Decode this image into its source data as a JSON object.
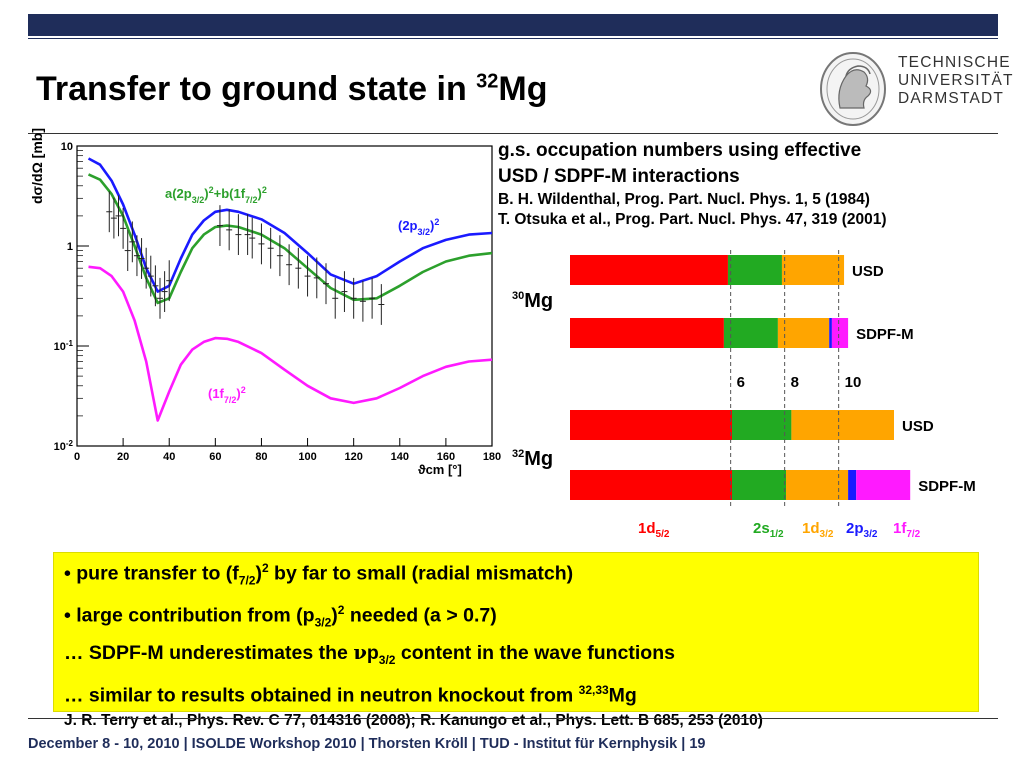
{
  "slide": {
    "title_main": "Transfer to ground state in ",
    "title_sup": "32",
    "title_elem": "Mg"
  },
  "logo": {
    "line1": "TECHNISCHE",
    "line2": "UNIVERSITÄT",
    "line3": "DARMSTADT"
  },
  "info": {
    "line1": "g.s. occupation numbers using effective",
    "line2": "USD / SDPF-M interactions",
    "ref1": "B. H. Wildenthal, Prog. Part. Nucl. Phys. 1, 5 (1984)",
    "ref2": "T. Otsuka et al., Prog. Part. Nucl. Phys. 47, 319 (2001)"
  },
  "chart_data": [
    {
      "type": "line",
      "ylabel": "dσ/dΩ [mb]",
      "xlabel": "ϑcm [°]",
      "xlim": [
        0,
        180
      ],
      "ylim": [
        0.01,
        10
      ],
      "yscale": "log",
      "x_ticks": [
        "0",
        "20",
        "40",
        "60",
        "80",
        "100",
        "120",
        "140",
        "160",
        "180"
      ],
      "y_ticks": [
        "10",
        "1",
        "10-1",
        "10-2"
      ],
      "series": [
        {
          "name": "(2p3/2)2",
          "color": "#1a1aff",
          "x": [
            5,
            10,
            15,
            20,
            25,
            30,
            35,
            40,
            45,
            50,
            55,
            60,
            65,
            70,
            80,
            90,
            100,
            110,
            120,
            130,
            140,
            150,
            160,
            170,
            180
          ],
          "y": [
            7.5,
            6.5,
            4.5,
            2.6,
            1.3,
            0.6,
            0.35,
            0.4,
            0.75,
            1.3,
            1.8,
            2.2,
            2.3,
            2.2,
            1.85,
            1.35,
            0.85,
            0.52,
            0.42,
            0.5,
            0.7,
            0.95,
            1.15,
            1.3,
            1.35
          ]
        },
        {
          "name": "a(2p3/2)2+b(1f7/2)2",
          "color": "#2ca02c",
          "x": [
            5,
            10,
            15,
            20,
            25,
            30,
            35,
            40,
            45,
            50,
            55,
            60,
            65,
            70,
            80,
            90,
            100,
            110,
            120,
            130,
            140,
            150,
            160,
            170,
            180
          ],
          "y": [
            5.2,
            4.6,
            3.3,
            2.0,
            1.0,
            0.48,
            0.27,
            0.3,
            0.55,
            0.95,
            1.3,
            1.55,
            1.6,
            1.55,
            1.3,
            0.95,
            0.6,
            0.38,
            0.29,
            0.3,
            0.4,
            0.55,
            0.7,
            0.8,
            0.85
          ]
        },
        {
          "name": "(1f7/2)2",
          "color": "#ff1aff",
          "x": [
            5,
            10,
            15,
            20,
            25,
            30,
            35,
            40,
            45,
            50,
            55,
            60,
            65,
            70,
            80,
            90,
            100,
            110,
            120,
            130,
            140,
            150,
            160,
            170,
            180
          ],
          "y": [
            0.62,
            0.6,
            0.5,
            0.35,
            0.18,
            0.07,
            0.018,
            0.035,
            0.065,
            0.092,
            0.11,
            0.12,
            0.118,
            0.11,
            0.085,
            0.058,
            0.04,
            0.03,
            0.027,
            0.03,
            0.038,
            0.05,
            0.062,
            0.07,
            0.073
          ]
        },
        {
          "name": "data",
          "color": "#000000",
          "x": [
            14,
            16,
            18,
            20,
            22,
            24,
            26,
            28,
            30,
            32,
            34,
            36,
            38,
            40,
            62,
            66,
            70,
            74,
            76,
            80,
            84,
            88,
            92,
            96,
            100,
            104,
            108,
            112,
            116,
            120,
            124,
            128,
            132
          ],
          "y": [
            2.2,
            1.9,
            2.0,
            1.5,
            0.9,
            1.1,
            0.8,
            0.75,
            0.6,
            0.5,
            0.4,
            0.3,
            0.35,
            0.45,
            1.6,
            1.45,
            1.3,
            1.3,
            1.2,
            1.05,
            0.95,
            0.8,
            0.65,
            0.6,
            0.5,
            0.48,
            0.42,
            0.3,
            0.35,
            0.3,
            0.28,
            0.3,
            0.26
          ]
        }
      ],
      "annotations": [
        "a(2p3/2)2+b(1f7/2)2",
        "(2p3/2)2",
        "(1f7/2)2"
      ]
    },
    {
      "type": "bar",
      "orientation": "horizontal-stacked",
      "x_ticks": [
        "6",
        "8",
        "10"
      ],
      "xlim": [
        0,
        14
      ],
      "legend": [
        "1d5/2",
        "2s1/2",
        "1d3/2",
        "2p3/2",
        "1f7/2"
      ],
      "colors": {
        "1d5/2": "#ff0000",
        "2s1/2": "#22aa22",
        "1d3/2": "#ffa500",
        "2p3/2": "#1a1aff",
        "1f7/2": "#ff1aff"
      },
      "groups": [
        {
          "nucleus_mass": "30",
          "nucleus_elem": "Mg",
          "rows": [
            {
              "label": "USD",
              "values": [
                5.85,
                2.0,
                2.3,
                0.0,
                0.0
              ]
            },
            {
              "label": "SDPF-M",
              "values": [
                5.7,
                2.0,
                1.9,
                0.1,
                0.6
              ]
            }
          ]
        },
        {
          "nucleus_mass": "32",
          "nucleus_elem": "Mg",
          "rows": [
            {
              "label": "USD",
              "values": [
                6.0,
                2.2,
                3.8,
                0.0,
                0.0
              ]
            },
            {
              "label": "SDPF-M",
              "values": [
                6.0,
                2.0,
                2.3,
                0.3,
                2.0
              ]
            }
          ]
        }
      ]
    }
  ],
  "summary": {
    "b1_pre": "• pure transfer to (f",
    "b1_sub": "7/2",
    "b1_mid": ")",
    "b1_sup": "2",
    "b1_post": " by far to small (radial mismatch)",
    "b2_pre": "• large contribution from (p",
    "b2_sub": "3/2",
    "b2_mid": ")",
    "b2_sup": "2",
    "b2_post": " needed (a > 0.7)",
    "b3_pre": "… SDPF-M underestimates the ",
    "b3_nu": "ν",
    "b3_p": "p",
    "b3_sub": "3/2",
    "b3_post": " content in the wave functions",
    "b4_pre": "… similar to results obtained in neutron knockout from ",
    "b4_sup": "32,33",
    "b4_post": "Mg",
    "refs": "J. R. Terry et al., Phys. Rev. C 77, 014316 (2008); R. Kanungo et al., Phys. Lett. B 685, 253 (2010)"
  },
  "footer": {
    "text": "December 8 - 10, 2010  |  ISOLDE Workshop 2010  | Thorsten Kröll | TUD - Institut für Kernphysik  |  19"
  }
}
